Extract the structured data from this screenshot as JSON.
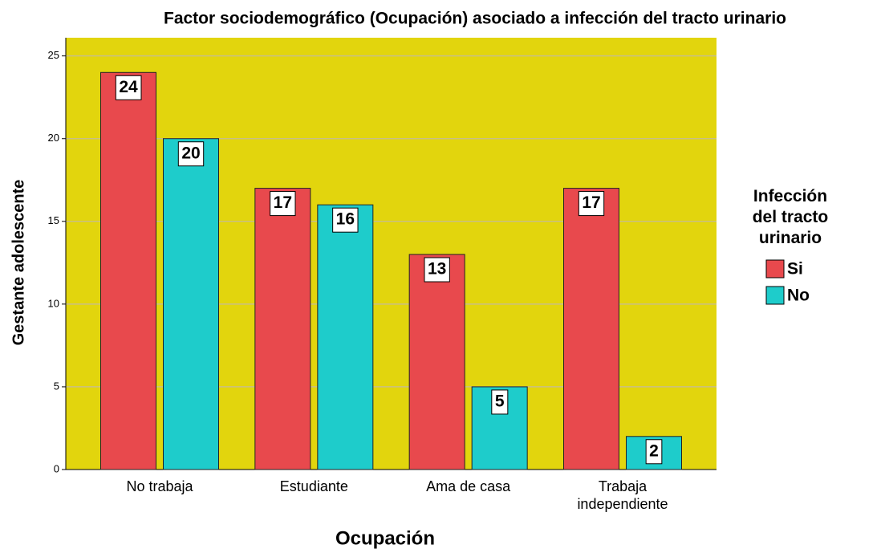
{
  "chart_data": {
    "type": "bar",
    "title": "Factor sociodemográfico (Ocupación) asociado a infección del tracto urinario",
    "x_label": "Ocupación",
    "y_label": "Gestante adolescente",
    "categories": [
      "No trabaja",
      "Estudiante",
      "Ama de casa",
      "Trabaja independiente"
    ],
    "series": [
      {
        "name": "Si",
        "color": "#e8494d",
        "values": [
          24,
          17,
          13,
          17
        ]
      },
      {
        "name": "No",
        "color": "#1ecccb",
        "values": [
          20,
          16,
          5,
          2
        ]
      }
    ],
    "legend_title": "Infección del tracto urinario",
    "legend_position": "right",
    "ylim": [
      0,
      26.1
    ],
    "yticks": [
      0,
      5,
      10,
      15,
      20,
      25
    ],
    "grid": true,
    "background": "#e2d50d"
  }
}
